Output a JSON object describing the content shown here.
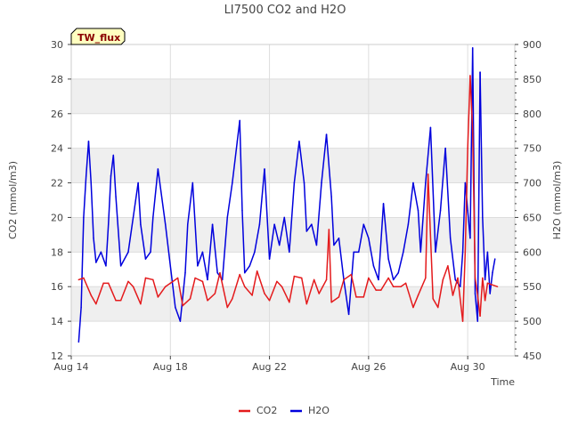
{
  "chart_data": {
    "type": "line",
    "title": "LI7500 CO2 and H2O",
    "badge": "TW_flux",
    "xlabel": "Time",
    "ylabel_left": "CO2 (mmol/m3)",
    "ylabel_right": "H2O (mmol/m3)",
    "x_ticks": [
      "Aug 14",
      "Aug 18",
      "Aug 22",
      "Aug 26",
      "Aug 30"
    ],
    "x_tick_values": [
      14,
      18,
      22,
      26,
      30
    ],
    "xlim": [
      14,
      31.9
    ],
    "ylim_left": [
      12,
      30
    ],
    "y_ticks_left": [
      12,
      14,
      16,
      18,
      20,
      22,
      24,
      26,
      28,
      30
    ],
    "ylim_right": [
      450,
      900
    ],
    "y_ticks_right": [
      450,
      500,
      550,
      600,
      650,
      700,
      750,
      800,
      850,
      900
    ],
    "grid": true,
    "banded_background": true,
    "legend_position": "bottom-center",
    "colors": {
      "CO2": "#e41a1c",
      "H2O": "#0000dd",
      "band": "#efefef",
      "badge_fill": "#ffffc0"
    },
    "series": [
      {
        "name": "CO2",
        "axis": "left",
        "x": [
          14.3,
          14.5,
          14.8,
          15.0,
          15.3,
          15.5,
          15.8,
          16.0,
          16.3,
          16.5,
          16.8,
          17.0,
          17.3,
          17.5,
          17.8,
          18.0,
          18.3,
          18.5,
          18.8,
          19.0,
          19.3,
          19.5,
          19.8,
          20.0,
          20.3,
          20.5,
          20.8,
          21.0,
          21.3,
          21.5,
          21.8,
          22.0,
          22.3,
          22.5,
          22.8,
          23.0,
          23.3,
          23.5,
          23.8,
          24.0,
          24.3,
          24.4,
          24.5,
          24.8,
          25.0,
          25.3,
          25.5,
          25.8,
          26.0,
          26.3,
          26.5,
          26.8,
          27.0,
          27.3,
          27.5,
          27.8,
          28.0,
          28.3,
          28.4,
          28.6,
          28.8,
          29.0,
          29.2,
          29.4,
          29.6,
          29.8,
          29.9,
          30.0,
          30.1,
          30.2,
          30.3,
          30.4,
          30.5,
          30.6,
          30.7,
          30.8,
          31.0,
          31.2
        ],
        "y": [
          16.4,
          16.5,
          15.5,
          15.0,
          16.2,
          16.2,
          15.2,
          15.2,
          16.3,
          16.0,
          15.0,
          16.5,
          16.4,
          15.4,
          16.0,
          16.2,
          16.5,
          14.9,
          15.3,
          16.5,
          16.3,
          15.2,
          15.6,
          16.8,
          14.8,
          15.3,
          16.7,
          16.0,
          15.5,
          16.9,
          15.6,
          15.2,
          16.3,
          16.0,
          15.1,
          16.6,
          16.5,
          15.0,
          16.4,
          15.6,
          16.4,
          19.3,
          15.1,
          15.4,
          16.4,
          16.7,
          15.4,
          15.4,
          16.5,
          15.8,
          15.8,
          16.5,
          16.0,
          16.0,
          16.2,
          14.8,
          15.5,
          16.5,
          22.5,
          15.3,
          14.8,
          16.4,
          17.2,
          15.5,
          16.5,
          14.0,
          18.0,
          24.0,
          28.2,
          25.0,
          16.5,
          15.5,
          14.3,
          16.5,
          15.2,
          16.2,
          16.1,
          16.0
        ]
      },
      {
        "name": "H2O",
        "axis": "right",
        "x": [
          14.3,
          14.4,
          14.5,
          14.6,
          14.7,
          14.8,
          14.9,
          15.0,
          15.2,
          15.4,
          15.5,
          15.6,
          15.7,
          15.8,
          16.0,
          16.3,
          16.5,
          16.7,
          16.8,
          17.0,
          17.2,
          17.3,
          17.5,
          17.8,
          18.0,
          18.2,
          18.4,
          18.6,
          18.7,
          18.9,
          19.1,
          19.3,
          19.5,
          19.7,
          19.9,
          20.1,
          20.3,
          20.5,
          20.7,
          20.8,
          20.9,
          21.0,
          21.2,
          21.4,
          21.6,
          21.8,
          22.0,
          22.2,
          22.4,
          22.6,
          22.8,
          23.0,
          23.2,
          23.4,
          23.5,
          23.7,
          23.9,
          24.1,
          24.3,
          24.5,
          24.6,
          24.8,
          25.0,
          25.2,
          25.4,
          25.6,
          25.8,
          26.0,
          26.2,
          26.4,
          26.6,
          26.8,
          27.0,
          27.2,
          27.4,
          27.6,
          27.8,
          28.0,
          28.1,
          28.3,
          28.5,
          28.7,
          28.9,
          29.1,
          29.3,
          29.5,
          29.7,
          29.8,
          29.9,
          30.0,
          30.1,
          30.2,
          30.3,
          30.4,
          30.5,
          30.6,
          30.7,
          30.8,
          30.9,
          31.0,
          31.1
        ],
        "y": [
          470,
          520,
          650,
          710,
          760,
          700,
          620,
          585,
          600,
          580,
          640,
          710,
          740,
          680,
          580,
          600,
          650,
          700,
          640,
          590,
          600,
          650,
          720,
          640,
          580,
          520,
          500,
          570,
          640,
          700,
          580,
          600,
          560,
          640,
          570,
          560,
          650,
          700,
          760,
          790,
          660,
          570,
          580,
          600,
          640,
          720,
          590,
          640,
          610,
          650,
          600,
          700,
          760,
          700,
          630,
          640,
          610,
          700,
          770,
          680,
          610,
          620,
          560,
          510,
          600,
          600,
          640,
          620,
          580,
          560,
          670,
          590,
          560,
          570,
          600,
          640,
          700,
          660,
          600,
          700,
          780,
          600,
          660,
          750,
          620,
          560,
          550,
          600,
          700,
          660,
          620,
          895,
          540,
          500,
          860,
          650,
          560,
          600,
          540,
          570,
          590
        ]
      }
    ]
  }
}
